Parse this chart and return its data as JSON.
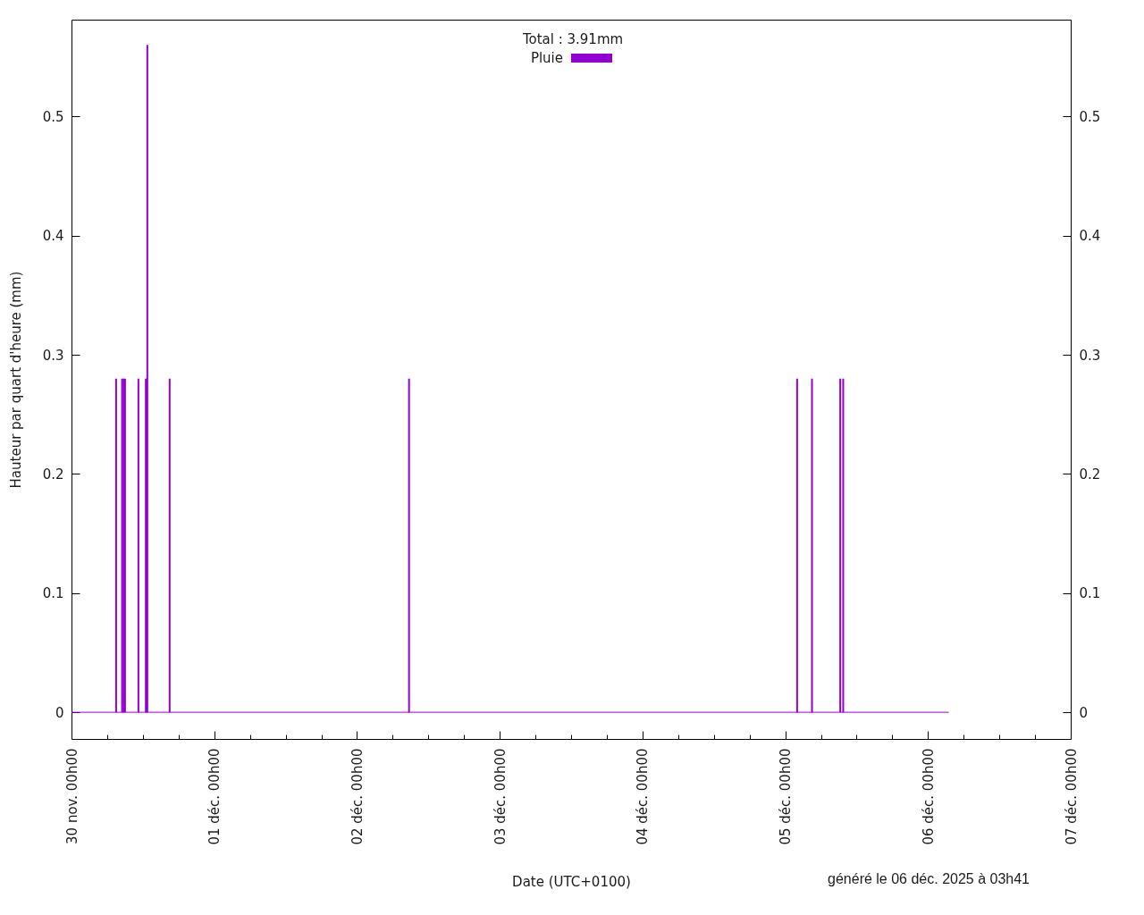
{
  "chart_data": {
    "type": "bar",
    "legend_title": "Total : 3.91mm",
    "xlabel": "Date (UTC+0100)",
    "ylabel": "Hauteur par quart d'heure (mm)",
    "annotations": [
      "généré le 06 déc. 2025 à 03h41"
    ],
    "series": [
      {
        "name": "Pluie",
        "color": "#9400d3",
        "x": [
          "2025-11-30T07:30",
          "2025-11-30T08:30",
          "2025-11-30T08:45",
          "2025-11-30T09:00",
          "2025-11-30T11:15",
          "2025-11-30T12:30",
          "2025-11-30T12:45",
          "2025-11-30T16:30",
          "2025-12-02T08:45",
          "2025-12-05T02:00",
          "2025-12-05T04:30",
          "2025-12-05T09:15",
          "2025-12-05T09:45"
        ],
        "values": [
          0.28,
          0.28,
          0.28,
          0.28,
          0.28,
          0.28,
          0.56,
          0.28,
          0.28,
          0.28,
          0.28,
          0.28,
          0.28
        ]
      },
      {
        "type": "line",
        "color": "#9400d3",
        "x": [
          "2025-11-30T00:00",
          "2025-12-06T03:30"
        ],
        "values": [
          0,
          0
        ]
      }
    ],
    "xlim": [
      "2025-11-30T00:00",
      "2025-12-07T00:00"
    ],
    "xticks": [
      {
        "value": "2025-11-30T00:00",
        "label": "30 nov. 00h00"
      },
      {
        "value": "2025-11-30T06:00",
        "label": null
      },
      {
        "value": "2025-11-30T12:00",
        "label": null
      },
      {
        "value": "2025-11-30T18:00",
        "label": null
      },
      {
        "value": "2025-12-01T00:00",
        "label": "01 déc. 00h00"
      },
      {
        "value": "2025-12-01T06:00",
        "label": null
      },
      {
        "value": "2025-12-01T12:00",
        "label": null
      },
      {
        "value": "2025-12-01T18:00",
        "label": null
      },
      {
        "value": "2025-12-02T00:00",
        "label": "02 déc. 00h00"
      },
      {
        "value": "2025-12-02T06:00",
        "label": null
      },
      {
        "value": "2025-12-02T12:00",
        "label": null
      },
      {
        "value": "2025-12-02T18:00",
        "label": null
      },
      {
        "value": "2025-12-03T00:00",
        "label": "03 déc. 00h00"
      },
      {
        "value": "2025-12-03T06:00",
        "label": null
      },
      {
        "value": "2025-12-03T12:00",
        "label": null
      },
      {
        "value": "2025-12-03T18:00",
        "label": null
      },
      {
        "value": "2025-12-04T00:00",
        "label": "04 déc. 00h00"
      },
      {
        "value": "2025-12-04T06:00",
        "label": null
      },
      {
        "value": "2025-12-04T12:00",
        "label": null
      },
      {
        "value": "2025-12-04T18:00",
        "label": null
      },
      {
        "value": "2025-12-05T00:00",
        "label": "05 déc. 00h00"
      },
      {
        "value": "2025-12-05T06:00",
        "label": null
      },
      {
        "value": "2025-12-05T12:00",
        "label": null
      },
      {
        "value": "2025-12-05T18:00",
        "label": null
      },
      {
        "value": "2025-12-06T00:00",
        "label": "06 déc. 00h00"
      },
      {
        "value": "2025-12-06T06:00",
        "label": null
      },
      {
        "value": "2025-12-06T12:00",
        "label": null
      },
      {
        "value": "2025-12-06T18:00",
        "label": null
      },
      {
        "value": "2025-12-07T00:00",
        "label": "07 déc. 00h00"
      }
    ],
    "ylim": [
      -0.0224,
      0.5812
    ],
    "yticks": [
      0,
      0.1,
      0.2,
      0.3,
      0.4,
      0.5
    ],
    "y2lim": [
      -0.0224,
      0.5812
    ],
    "y2ticks": [
      0,
      0.1,
      0.2,
      0.3,
      0.4,
      0.5
    ],
    "legend": "top",
    "grid": false
  }
}
